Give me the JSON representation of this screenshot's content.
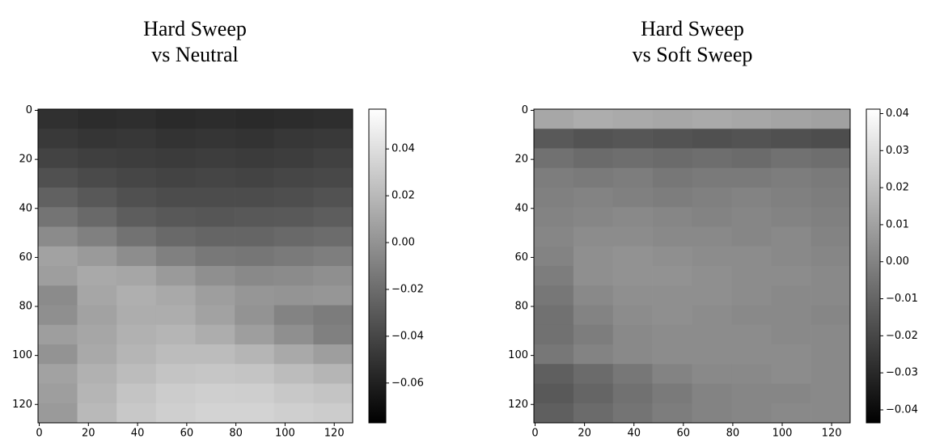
{
  "chart_data": [
    {
      "type": "heatmap",
      "title": [
        "Hard Sweep",
        "vs Neutral"
      ],
      "colormap": "gray",
      "x": [
        7.5,
        23.5,
        39.5,
        55.5,
        71.5,
        87.5,
        103.5,
        119.5
      ],
      "y": [
        3.5,
        11.5,
        19.5,
        27.5,
        35.5,
        43.5,
        51.5,
        59.5,
        67.5,
        75.5,
        83.5,
        91.5,
        99.5,
        107.5,
        115.5,
        123.5
      ],
      "z": [
        [
          -0.052,
          -0.054,
          -0.053,
          -0.055,
          -0.054,
          -0.055,
          -0.054,
          -0.053
        ],
        [
          -0.047,
          -0.049,
          -0.048,
          -0.05,
          -0.049,
          -0.05,
          -0.048,
          -0.047
        ],
        [
          -0.042,
          -0.044,
          -0.045,
          -0.046,
          -0.045,
          -0.046,
          -0.045,
          -0.043
        ],
        [
          -0.035,
          -0.038,
          -0.04,
          -0.042,
          -0.041,
          -0.042,
          -0.04,
          -0.039
        ],
        [
          -0.026,
          -0.031,
          -0.035,
          -0.037,
          -0.037,
          -0.037,
          -0.036,
          -0.034
        ],
        [
          -0.016,
          -0.022,
          -0.028,
          -0.031,
          -0.032,
          -0.031,
          -0.03,
          -0.028
        ],
        [
          -0.004,
          -0.01,
          -0.017,
          -0.022,
          -0.024,
          -0.024,
          -0.022,
          -0.02
        ],
        [
          0.008,
          0.004,
          -0.003,
          -0.01,
          -0.014,
          -0.015,
          -0.013,
          -0.011
        ],
        [
          0.006,
          0.012,
          0.01,
          0.004,
          -0.002,
          -0.005,
          -0.004,
          -0.002
        ],
        [
          -0.004,
          0.01,
          0.015,
          0.012,
          0.006,
          0.002,
          0.001,
          0.002
        ],
        [
          -0.002,
          0.008,
          0.014,
          0.014,
          0.008,
          0.0,
          -0.008,
          -0.012
        ],
        [
          0.006,
          0.01,
          0.016,
          0.018,
          0.014,
          0.006,
          -0.002,
          -0.01
        ],
        [
          0.0,
          0.012,
          0.018,
          0.022,
          0.022,
          0.018,
          0.012,
          0.006
        ],
        [
          0.008,
          0.016,
          0.022,
          0.026,
          0.027,
          0.026,
          0.022,
          0.018
        ],
        [
          0.006,
          0.018,
          0.026,
          0.03,
          0.032,
          0.031,
          0.028,
          0.026
        ],
        [
          0.004,
          0.02,
          0.028,
          0.032,
          0.034,
          0.034,
          0.032,
          0.03
        ]
      ],
      "xlim": [
        -0.5,
        127.5
      ],
      "ylim": [
        127.5,
        -0.5
      ],
      "xticks": [
        0,
        20,
        40,
        60,
        80,
        100,
        120
      ],
      "yticks": [
        0,
        20,
        40,
        60,
        80,
        100,
        120
      ],
      "clim": [
        -0.077,
        0.057
      ],
      "cticks": [
        0.04,
        0.02,
        {
          "value": 0,
          "label": "0.00"
        },
        {
          "value": -0.02,
          "label": "−0.02"
        },
        {
          "value": -0.04,
          "label": "−0.04"
        },
        {
          "value": -0.06,
          "label": "−0.06"
        }
      ]
    },
    {
      "type": "heatmap",
      "title": [
        "Hard Sweep",
        "vs Soft Sweep"
      ],
      "colormap": "gray",
      "x": [
        7.5,
        23.5,
        39.5,
        55.5,
        71.5,
        87.5,
        103.5,
        119.5
      ],
      "y": [
        3.5,
        11.5,
        19.5,
        27.5,
        35.5,
        43.5,
        51.5,
        59.5,
        67.5,
        75.5,
        83.5,
        91.5,
        99.5,
        107.5,
        115.5,
        123.5
      ],
      "z": [
        [
          0.012,
          0.014,
          0.013,
          0.012,
          0.013,
          0.012,
          0.011,
          0.01
        ],
        [
          -0.014,
          -0.016,
          -0.015,
          -0.016,
          -0.017,
          -0.016,
          -0.017,
          -0.018
        ],
        [
          -0.006,
          -0.008,
          -0.007,
          -0.008,
          -0.007,
          -0.008,
          -0.006,
          -0.007
        ],
        [
          -0.002,
          -0.003,
          -0.002,
          -0.004,
          -0.003,
          -0.003,
          -0.002,
          -0.003
        ],
        [
          -0.001,
          0.0,
          -0.001,
          -0.002,
          -0.001,
          0.0,
          -0.001,
          -0.002
        ],
        [
          0.0,
          0.001,
          0.002,
          0.001,
          0.0,
          0.001,
          0.0,
          -0.001
        ],
        [
          0.001,
          0.003,
          0.003,
          0.002,
          0.002,
          0.001,
          0.002,
          0.0
        ],
        [
          0.0,
          0.004,
          0.005,
          0.004,
          0.003,
          0.003,
          0.002,
          0.001
        ],
        [
          -0.002,
          0.004,
          0.005,
          0.005,
          0.004,
          0.003,
          0.003,
          0.002
        ],
        [
          -0.004,
          0.002,
          0.004,
          0.004,
          0.004,
          0.003,
          0.002,
          0.002
        ],
        [
          -0.006,
          0.0,
          0.003,
          0.004,
          0.003,
          0.002,
          0.002,
          0.001
        ],
        [
          -0.006,
          -0.002,
          0.002,
          0.003,
          0.003,
          0.003,
          0.002,
          0.002
        ],
        [
          -0.004,
          0.0,
          0.002,
          0.003,
          0.003,
          0.003,
          0.003,
          0.002
        ],
        [
          -0.012,
          -0.008,
          -0.004,
          0.0,
          0.002,
          0.002,
          0.003,
          0.002
        ],
        [
          -0.014,
          -0.01,
          -0.006,
          -0.003,
          0.0,
          0.001,
          0.001,
          0.002
        ],
        [
          -0.012,
          -0.008,
          -0.005,
          -0.002,
          0.0,
          0.001,
          0.002,
          0.002
        ]
      ],
      "xlim": [
        -0.5,
        127.5
      ],
      "ylim": [
        127.5,
        -0.5
      ],
      "xticks": [
        0,
        20,
        40,
        60,
        80,
        100,
        120
      ],
      "yticks": [
        0,
        20,
        40,
        60,
        80,
        100,
        120
      ],
      "clim": [
        -0.0435,
        0.0412
      ],
      "cticks": [
        0.04,
        0.03,
        0.02,
        0.01,
        {
          "value": 0,
          "label": "0.00"
        },
        {
          "value": -0.01,
          "label": "−0.01"
        },
        {
          "value": -0.02,
          "label": "−0.02"
        },
        {
          "value": -0.03,
          "label": "−0.03"
        },
        {
          "value": -0.04,
          "label": "−0.04"
        }
      ]
    }
  ]
}
